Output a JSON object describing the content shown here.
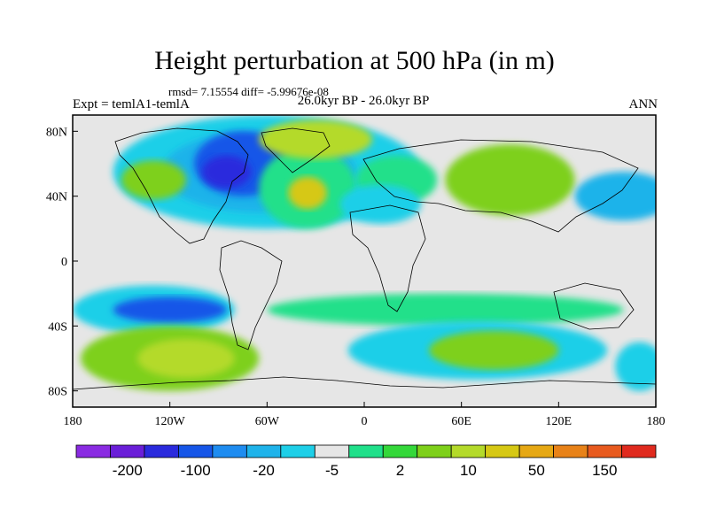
{
  "title": "Height perturbation at 500 hPa (in m)",
  "stats": "rmsd= 7.15554 diff= -5.99676e-08",
  "expt": "Expt = temlA1-temlA",
  "period": "26.0kyr BP - 26.0kyr BP",
  "season": "ANN",
  "map": {
    "lon_ticks": [
      "180",
      "120W",
      "60W",
      "0",
      "60E",
      "120E",
      "180"
    ],
    "lat_ticks": [
      "80N",
      "40N",
      "0",
      "40S",
      "80S"
    ],
    "lon_values": [
      -180,
      -120,
      -60,
      0,
      60,
      120,
      180
    ],
    "lat_values": [
      80,
      40,
      0,
      -40,
      -80
    ]
  },
  "chart_data": {
    "type": "heatmap",
    "title": "Height perturbation at 500 hPa (in m)",
    "xlim": [
      -180,
      180
    ],
    "ylim": [
      -90,
      90
    ],
    "colorbar": {
      "colors": [
        "#8a2be2",
        "#6a1ed8",
        "#2a2add",
        "#1656e8",
        "#1e8cf0",
        "#1fb3ea",
        "#1ecfe8",
        "#e6e6e6",
        "#20e08a",
        "#34d83a",
        "#7ed01a",
        "#b4da2a",
        "#d6c814",
        "#e6a814",
        "#e88218",
        "#e85a1e",
        "#e02a1e"
      ],
      "labels": [
        "-200",
        "-100",
        "-20",
        "-5",
        "2",
        "10",
        "50",
        "150"
      ]
    },
    "features": [
      {
        "level": "#1ecfe8",
        "lon": -60,
        "lat": 55,
        "rx": 95,
        "ry": 35
      },
      {
        "level": "#1fb3ea",
        "lon": -65,
        "lat": 55,
        "rx": 60,
        "ry": 25
      },
      {
        "level": "#1656e8",
        "lon": -75,
        "lat": 60,
        "rx": 30,
        "ry": 20
      },
      {
        "level": "#2a2add",
        "lon": -85,
        "lat": 55,
        "rx": 15,
        "ry": 10
      },
      {
        "level": "#7ed01a",
        "lon": -130,
        "lat": 50,
        "rx": 20,
        "ry": 12
      },
      {
        "level": "#20e08a",
        "lon": -35,
        "lat": 45,
        "rx": 30,
        "ry": 25
      },
      {
        "level": "#d6c814",
        "lon": -35,
        "lat": 42,
        "rx": 12,
        "ry": 10
      },
      {
        "level": "#b4da2a",
        "lon": -30,
        "lat": 75,
        "rx": 35,
        "ry": 12
      },
      {
        "level": "#7ed01a",
        "lon": 90,
        "lat": 50,
        "rx": 40,
        "ry": 22
      },
      {
        "level": "#20e08a",
        "lon": 20,
        "lat": 50,
        "rx": 25,
        "ry": 15
      },
      {
        "level": "#1ecfe8",
        "lon": 10,
        "lat": 35,
        "rx": 25,
        "ry": 12
      },
      {
        "level": "#1fb3ea",
        "lon": 160,
        "lat": 40,
        "rx": 30,
        "ry": 15
      },
      {
        "level": "#1ecfe8",
        "lon": -130,
        "lat": -30,
        "rx": 50,
        "ry": 15
      },
      {
        "level": "#1656e8",
        "lon": -120,
        "lat": -30,
        "rx": 35,
        "ry": 8
      },
      {
        "level": "#7ed01a",
        "lon": -120,
        "lat": -60,
        "rx": 55,
        "ry": 20
      },
      {
        "level": "#b4da2a",
        "lon": -110,
        "lat": -60,
        "rx": 30,
        "ry": 12
      },
      {
        "level": "#20e08a",
        "lon": 50,
        "lat": -30,
        "rx": 110,
        "ry": 10
      },
      {
        "level": "#1ecfe8",
        "lon": 70,
        "lat": -55,
        "rx": 80,
        "ry": 18
      },
      {
        "level": "#7ed01a",
        "lon": 80,
        "lat": -55,
        "rx": 40,
        "ry": 12
      },
      {
        "level": "#1ecfe8",
        "lon": 170,
        "lat": -65,
        "rx": 15,
        "ry": 15
      }
    ]
  }
}
